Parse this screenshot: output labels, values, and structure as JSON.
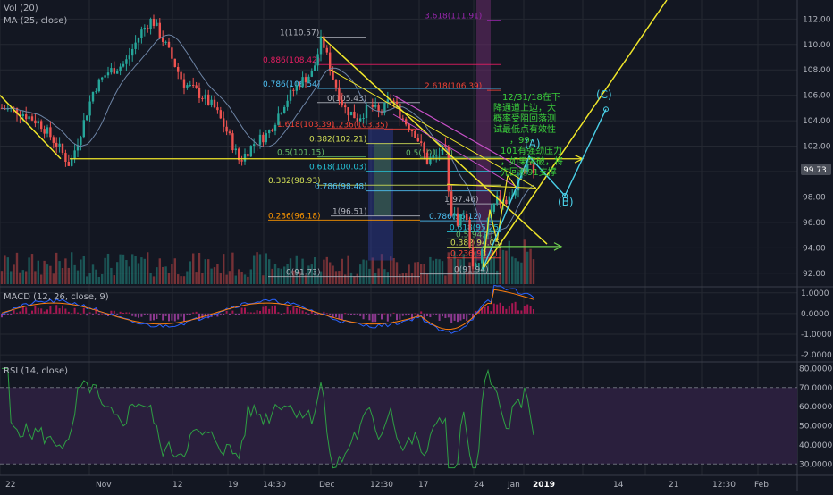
{
  "colors": {
    "bg": "#131722",
    "grid": "#242832",
    "sep": "#3a3e4a",
    "axis_text": "#b2b5be",
    "up": "#26a69a",
    "down": "#ef5350",
    "ma": "#6d84a5",
    "yellow": "#f0e62a",
    "cyan": "#4ad0e8",
    "magenta": "#c850c8",
    "green_text": "#3bd13b",
    "price_label_bg": "#4a4e58",
    "rsi_band": "#2a1f3d",
    "rsi_line": "#2ea043",
    "macd_line": "#2962ff",
    "signal_line": "#ff7f0e",
    "hist_pos": "#c2185b",
    "hist_neg": "#a33fa3"
  },
  "panes": {
    "price_title": "Vol (20)",
    "ma_title": "MA (25, close)",
    "macd_title": "MACD (12, 26, close, 9)",
    "rsi_title": "RSI (14, close)"
  },
  "last_price": "99.73",
  "chart_data": [
    {
      "type": "candlestick",
      "y_ticks": [
        "112.00",
        "110.00",
        "108.00",
        "106.00",
        "104.00",
        "102.00",
        "100.00",
        "98.00",
        "96.00",
        "94.00",
        "92.00"
      ],
      "ylim": [
        91.0,
        113.5
      ],
      "x_ticks": [
        "22",
        "Nov",
        "12",
        "19",
        "14:30",
        "Dec",
        "12:30",
        "17",
        "24",
        "Jan",
        "2019",
        "14",
        "21",
        "12:30",
        "Feb"
      ],
      "fib_levels": [
        {
          "label": "3.618(111.91)",
          "value": 111.91,
          "color": "#9c27b0"
        },
        {
          "label": "1(110.57)",
          "value": 110.57,
          "color": "#b2b5be"
        },
        {
          "label": "0.886(108.42)",
          "value": 108.42,
          "color": "#e91e63"
        },
        {
          "label": "2.618(106.39)",
          "value": 106.39,
          "color": "#f44336"
        },
        {
          "label": "0.786(106.54)",
          "value": 106.54,
          "color": "#4fc3f7"
        },
        {
          "label": "0(105.43)",
          "value": 105.43,
          "color": "#b2b5be"
        },
        {
          "label": "1.618(103.39)",
          "value": 103.39,
          "color": "#f44336"
        },
        {
          "label": "1.236(103.35)",
          "value": 103.35,
          "color": "#f44336"
        },
        {
          "label": "0.382(102.21)",
          "value": 102.21,
          "color": "#d4e157"
        },
        {
          "label": "0.5(101.15)",
          "value": 101.15,
          "color": "#66bb6a"
        },
        {
          "label": "0.5(101.12)",
          "value": 101.12,
          "color": "#66bb6a"
        },
        {
          "label": "0.618(100.03)",
          "value": 100.03,
          "color": "#26c6da"
        },
        {
          "label": "0.382(98.93)",
          "value": 98.93,
          "color": "#d4e157"
        },
        {
          "label": "0.786(98.48)",
          "value": 98.48,
          "color": "#4fc3f7"
        },
        {
          "label": "1(97.46)",
          "value": 97.46,
          "color": "#b2b5be"
        },
        {
          "label": "1(96.51)",
          "value": 96.51,
          "color": "#b2b5be"
        },
        {
          "label": "0.236(96.18)",
          "value": 96.18,
          "color": "#ff9800"
        },
        {
          "label": "0.786(96.12)",
          "value": 96.12,
          "color": "#4fc3f7"
        },
        {
          "label": "0.618(95.25)",
          "value": 95.25,
          "color": "#26c6da"
        },
        {
          "label": "0.5(94.7)",
          "value": 94.7,
          "color": "#66bb6a"
        },
        {
          "label": "0.382(94.05)",
          "value": 94.05,
          "color": "#d4e157"
        },
        {
          "label": "0.236(93.2)",
          "value": 93.2,
          "color": "#f44336"
        },
        {
          "label": "0(91.73)",
          "value": 91.73,
          "color": "#b2b5be"
        },
        {
          "label": "0(91.94)",
          "value": 91.94,
          "color": "#b2b5be"
        }
      ],
      "wave_labels": [
        "(A)",
        "(B)",
        "(C)"
      ],
      "annotation": [
        "12/31/18在下",
        "降通道上边，大",
        "概率受阻回落测",
        "试最低点有效性",
        "，99-",
        "101有强劲压力",
        "，如果突破，将",
        "先回测91支撑"
      ]
    },
    {
      "type": "line",
      "name": "MACD (12, 26, close, 9)",
      "y_ticks": [
        "1.0000",
        "0.0000",
        "-1.0000",
        "-2.0000"
      ],
      "ylim": [
        -2.3,
        1.25
      ]
    },
    {
      "type": "line",
      "name": "RSI (14, close)",
      "y_ticks": [
        "80.0000",
        "70.0000",
        "60.0000",
        "50.0000",
        "40.0000",
        "30.0000"
      ],
      "ylim": [
        25,
        83
      ],
      "band": [
        30,
        70
      ]
    }
  ]
}
